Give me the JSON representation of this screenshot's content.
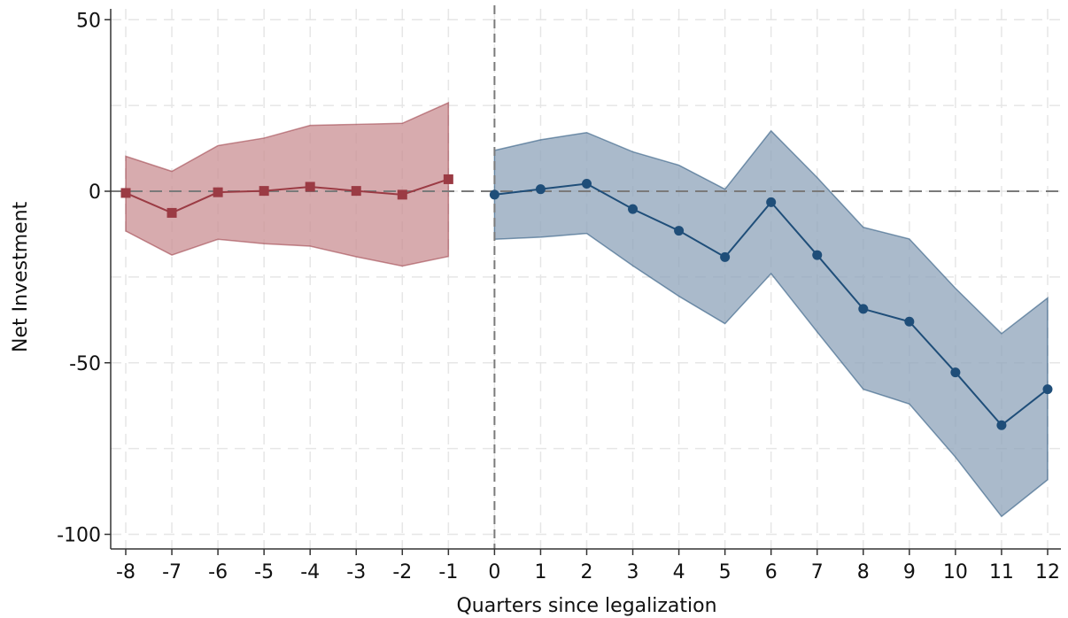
{
  "chart_data": {
    "type": "line",
    "xlabel": "Quarters since legalization",
    "ylabel": "Net Investment",
    "xlim": [
      -8,
      12
    ],
    "ylim": [
      -100,
      50
    ],
    "x_ticks": [
      "-8",
      "-7",
      "-6",
      "-5",
      "-4",
      "-3",
      "-2",
      "-1",
      "0",
      "1",
      "2",
      "3",
      "4",
      "5",
      "6",
      "7",
      "8",
      "9",
      "10",
      "11",
      "12"
    ],
    "y_ticks": [
      "50",
      "0",
      "-50",
      "-100"
    ],
    "grid": true,
    "reference_lines": {
      "horizontal_y": 0,
      "vertical_x": 0
    },
    "series": [
      {
        "marker": "square",
        "color": "#9b3b44",
        "band_color": "#c98f93",
        "x": [
          -8,
          -7,
          -6,
          -5,
          -4,
          -3,
          -2,
          -1
        ],
        "y": [
          -0.5,
          -6.3,
          -0.3,
          0.1,
          1.3,
          0.1,
          -1.0,
          3.5
        ],
        "ci_upper": [
          10.2,
          5.8,
          13.3,
          15.5,
          19.2,
          19.5,
          19.8,
          25.8
        ],
        "ci_lower": [
          -11.6,
          -18.6,
          -14.0,
          -15.3,
          -16.0,
          -19.1,
          -21.8,
          -19.0
        ]
      },
      {
        "marker": "circle",
        "color": "#1f4e79",
        "band_color": "#8ea3ba",
        "x": [
          0,
          1,
          2,
          3,
          4,
          5,
          6,
          7,
          8,
          9,
          10,
          11,
          12
        ],
        "y": [
          -1.0,
          0.6,
          2.2,
          -5.2,
          -11.5,
          -19.2,
          -3.2,
          -18.6,
          -34.3,
          -38.0,
          -52.8,
          -68.2,
          -57.7
        ],
        "ci_upper": [
          11.9,
          15.0,
          17.1,
          11.5,
          7.6,
          0.6,
          17.6,
          4.0,
          -10.5,
          -13.9,
          -28.3,
          -41.5,
          -31.1
        ],
        "ci_lower": [
          -14.0,
          -13.4,
          -12.3,
          -21.7,
          -30.6,
          -38.6,
          -24.0,
          -41.0,
          -57.7,
          -62.0,
          -77.5,
          -94.8,
          -84.1
        ]
      }
    ]
  }
}
